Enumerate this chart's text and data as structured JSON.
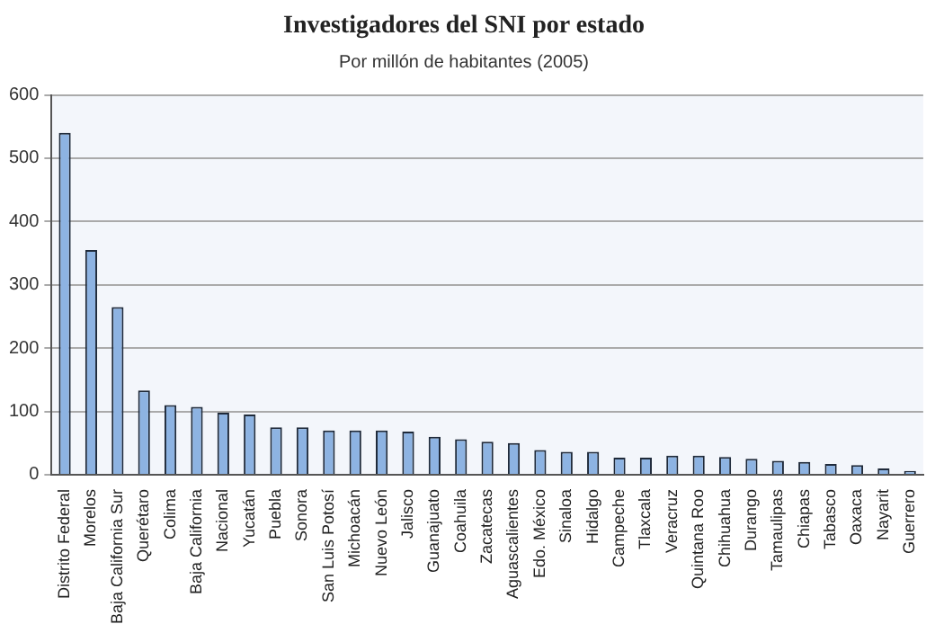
{
  "chart_data": {
    "type": "bar",
    "title": "Investigadores del SNI por estado",
    "subtitle": "Por millón de habitantes (2005)",
    "categories": [
      "Distrito Federal",
      "Morelos",
      "Baja California Sur",
      "Querétaro",
      "Colima",
      "Baja California",
      "Nacional",
      "Yucatán",
      "Puebla",
      "Sonora",
      "San Luis Potosí",
      "Michoacán",
      "Nuevo León",
      "Jalisco",
      "Guanajuato",
      "Coahuila",
      "Zacatecas",
      "Aguascalientes",
      "Edo. México",
      "Sinaloa",
      "Hidalgo",
      "Campeche",
      "Tlaxcala",
      "Veracruz",
      "Quintana Roo",
      "Chihuahua",
      "Durango",
      "Tamaulipas",
      "Chiapas",
      "Tabasco",
      "Oaxaca",
      "Nayarit",
      "Guerrero"
    ],
    "values": [
      540,
      355,
      265,
      133,
      110,
      107,
      98,
      95,
      75,
      75,
      70,
      70,
      70,
      68,
      60,
      56,
      52,
      50,
      39,
      36,
      36,
      27,
      27,
      30,
      30,
      28,
      25,
      22,
      20,
      17,
      15,
      10,
      6
    ],
    "color": "#8db3e2",
    "ylim": [
      0,
      600
    ],
    "yticks": [
      0,
      100,
      200,
      300,
      400,
      500,
      600
    ],
    "grid": "y"
  }
}
